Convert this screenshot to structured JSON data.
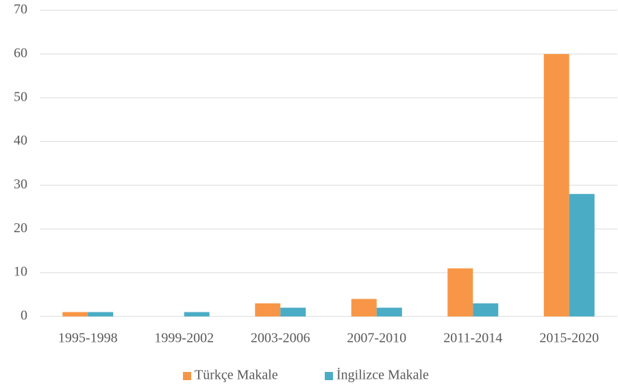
{
  "chart_data": {
    "type": "bar",
    "categories": [
      "1995-1998",
      "1999-2002",
      "2003-2006",
      "2007-2010",
      "2011-2014",
      "2015-2020"
    ],
    "series": [
      {
        "name": "Türkçe Makale",
        "color": "#f79646",
        "values": [
          1,
          0,
          3,
          4,
          11,
          60
        ]
      },
      {
        "name": "İngilizce Makale",
        "color": "#4bacc6",
        "values": [
          1,
          1,
          2,
          2,
          3,
          28
        ]
      }
    ],
    "ylim": [
      0,
      70
    ],
    "yticks": [
      0,
      10,
      20,
      30,
      40,
      50,
      60,
      70
    ],
    "grid": true,
    "legend": "bottom"
  }
}
